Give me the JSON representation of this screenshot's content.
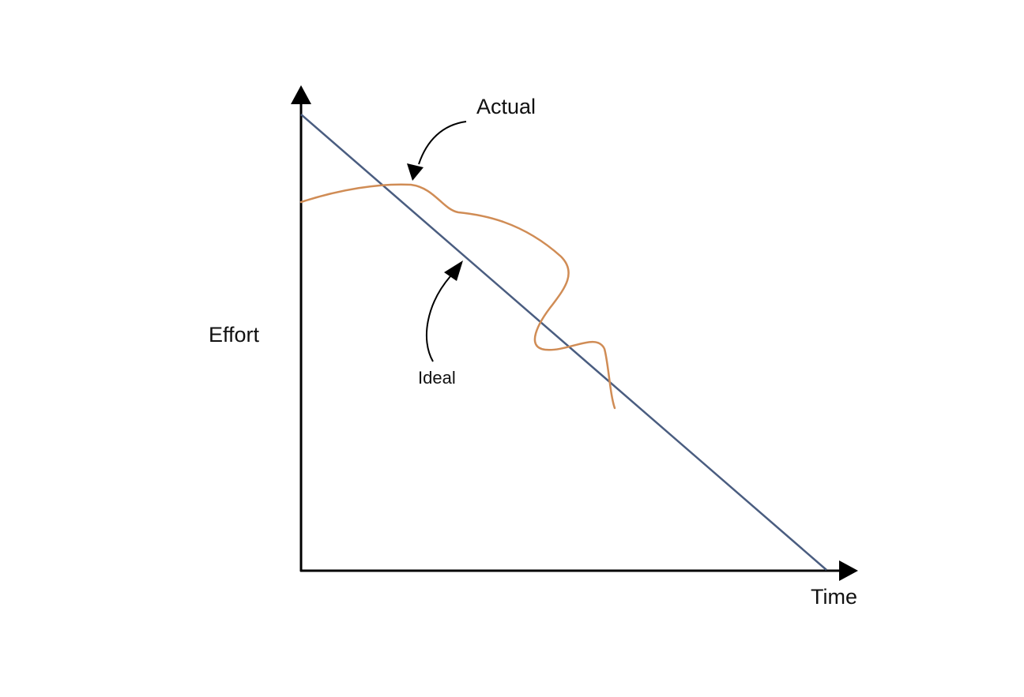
{
  "labels": {
    "y_axis": "Effort",
    "x_axis": "Time",
    "actual": "Actual",
    "ideal": "Ideal"
  },
  "colors": {
    "axis": "#000000",
    "ideal_line": "#4a5d80",
    "actual_line": "#d08c55",
    "text": "#111111",
    "background": "#ffffff"
  }
}
